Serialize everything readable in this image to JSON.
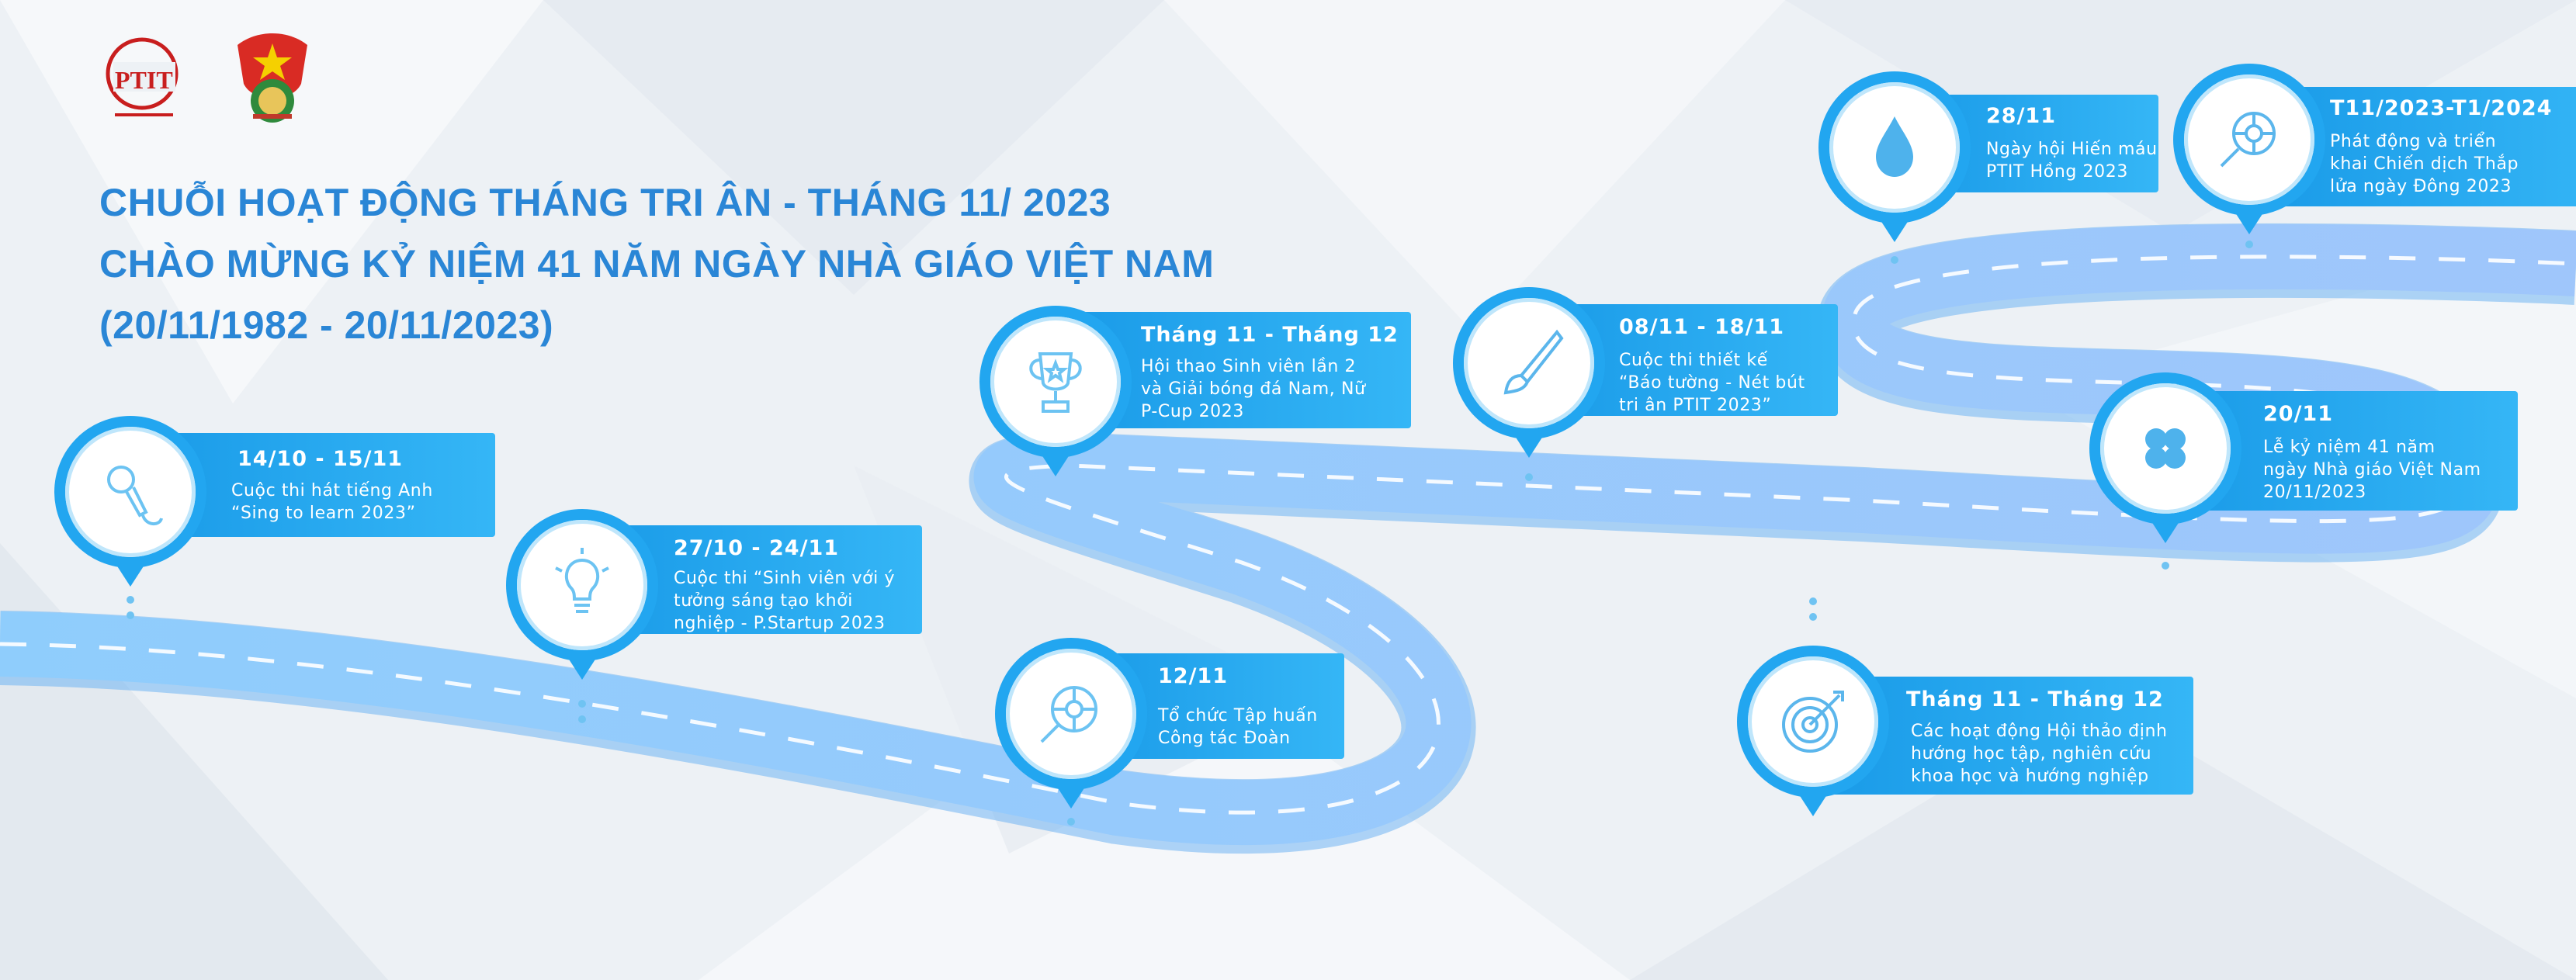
{
  "header": {
    "title_lines": [
      "CHUỖI HOẠT ĐỘNG THÁNG TRI ÂN - THÁNG 11/ 2023",
      "CHÀO MỪNG KỶ NIỆM 41 NĂM NGÀY NHÀ GIÁO VIỆT NAM",
      "(20/11/1982 - 20/11/2023)"
    ],
    "logo_ptit_text": "PTIT"
  },
  "colors": {
    "title": "#2a86d6",
    "accent": "#22a6f0",
    "road": "#7ec4fb",
    "card": "#1a9be8"
  },
  "milestones": [
    {
      "icon": "microphone-icon",
      "date": "14/10 - 15/11",
      "desc": [
        "Cuộc thi hát tiếng Anh",
        "“Sing to learn 2023”"
      ]
    },
    {
      "icon": "lightbulb-icon",
      "date": "27/10 - 24/11",
      "desc": [
        "Cuộc thi “Sinh viên với ý",
        "tưởng sáng tạo khởi",
        "nghiệp - P.Startup 2023"
      ]
    },
    {
      "icon": "trophy-icon",
      "date": "Tháng 11 - Tháng 12",
      "desc": [
        "Hội thao Sinh viên lần 2",
        "và Giải bóng đá Nam, Nữ",
        "P-Cup 2023"
      ]
    },
    {
      "icon": "magnifier-target-icon",
      "date": "12/11",
      "desc": [
        "Tổ chức Tập huấn",
        "Công tác Đoàn"
      ]
    },
    {
      "icon": "paintbrush-icon",
      "date": "08/11 - 18/11",
      "desc": [
        "Cuộc thi thiết kế",
        "“Báo tường - Nét bút",
        "tri ân PTIT 2023”"
      ]
    },
    {
      "icon": "target-arrow-icon",
      "date": "Tháng 11 - Tháng 12",
      "desc": [
        "Các hoạt động Hội thảo định",
        "hướng học tập, nghiên cứu",
        "khoa học và hướng nghiệp"
      ]
    },
    {
      "icon": "water-drop-icon",
      "date": "28/11",
      "desc": [
        "Ngày hội Hiến máu",
        "PTIT Hồng 2023"
      ]
    },
    {
      "icon": "clover-icon",
      "date": "20/11",
      "desc": [
        "Lễ kỷ niệm 41 năm",
        "ngày Nhà giáo Việt Nam",
        "20/11/2023"
      ]
    },
    {
      "icon": "magnifier-target-icon",
      "date": "T11/2023-T1/2024",
      "desc": [
        "Phát động và triển",
        "khai Chiến dịch Thắp",
        "lửa ngày Đông 2023"
      ]
    }
  ]
}
